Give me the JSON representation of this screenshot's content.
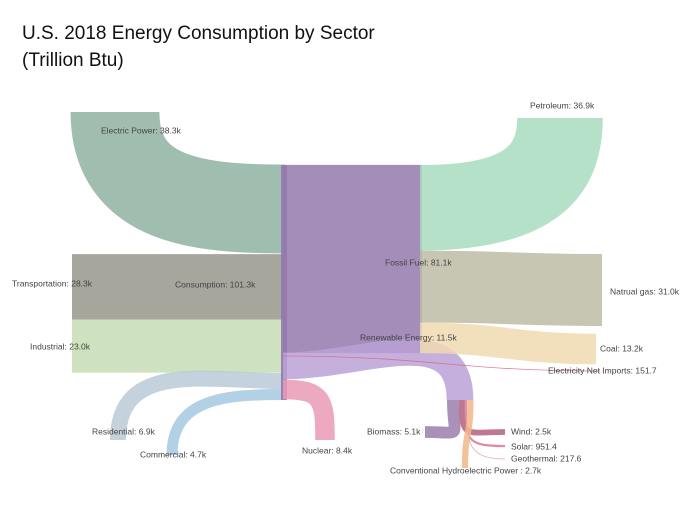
{
  "chart_data": {
    "type": "sankey",
    "title": "U.S. 2018 Energy Consumption by Sector",
    "subtitle": "(Trillion Btu)",
    "nodes": [
      {
        "label": "Electric Power: 38.3k",
        "value": 38300,
        "color": "#8fb3a2"
      },
      {
        "label": "Transportation: 28.3k",
        "value": 28300,
        "color": "#96968c"
      },
      {
        "label": "Industrial: 23.0k",
        "value": 23000,
        "color": "#c6ddb4"
      },
      {
        "label": "Residential: 6.9k",
        "value": 6900,
        "color": "#b9cad7"
      },
      {
        "label": "Commercial: 4.7k",
        "value": 4700,
        "color": "#a5c9e0"
      },
      {
        "label": "Consumption: 101.3k",
        "value": 101300,
        "color": "#9479ad"
      },
      {
        "label": "Fossil Fuel: 81.1k",
        "value": 81100,
        "color": "#9479ad"
      },
      {
        "label": "Renewable Energy: 11.5k",
        "value": 11500,
        "color": "#bba1d6"
      },
      {
        "label": "Nuclear: 8.4k",
        "value": 8400,
        "color": "#e99ab4"
      },
      {
        "label": "Electricity Net Imports: 151.7",
        "value": 151.7,
        "color": "#d9668c"
      },
      {
        "label": "Petroleum: 36.9k",
        "value": 36900,
        "color": "#a8dcc0"
      },
      {
        "label": "Natrual gas: 31.0k",
        "value": 31000,
        "color": "#bcbca6"
      },
      {
        "label": "Coal: 13.2k",
        "value": 13200,
        "color": "#f0dab2"
      },
      {
        "label": "Biomass: 5.1k",
        "value": 5100,
        "color": "#9a7eae"
      },
      {
        "label": "Wind: 2.5k",
        "value": 2500,
        "color": "#b5607f"
      },
      {
        "label": "Solar: 951.4",
        "value": 951.4,
        "color": "#d9788f"
      },
      {
        "label": "Geothermal: 217.6",
        "value": 217.6,
        "color": "#e89ab0"
      },
      {
        "label": "Conventional Hydroelectric Power : 2.7k",
        "value": 2700,
        "color": "#f0b88a"
      }
    ]
  }
}
